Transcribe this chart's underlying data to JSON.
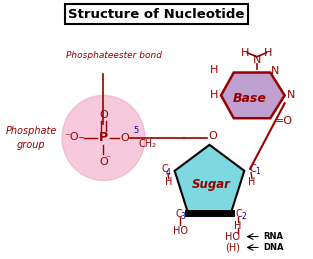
{
  "title": "Structure of Nucleotide",
  "bg_color": "#ffffff",
  "phosphate_circle_color": "#f0a0c0",
  "phosphate_circle_alpha": 0.55,
  "sugar_color": "#7dd8e0",
  "base_color": "#c0a0d0",
  "dark_red": "#990000",
  "blue": "#000099",
  "black": "#000000",
  "label_phosphate": "Phosphate\ngroup",
  "label_bond": "Phosphateester bond",
  "label_base": "Base",
  "label_sugar": "Sugar"
}
